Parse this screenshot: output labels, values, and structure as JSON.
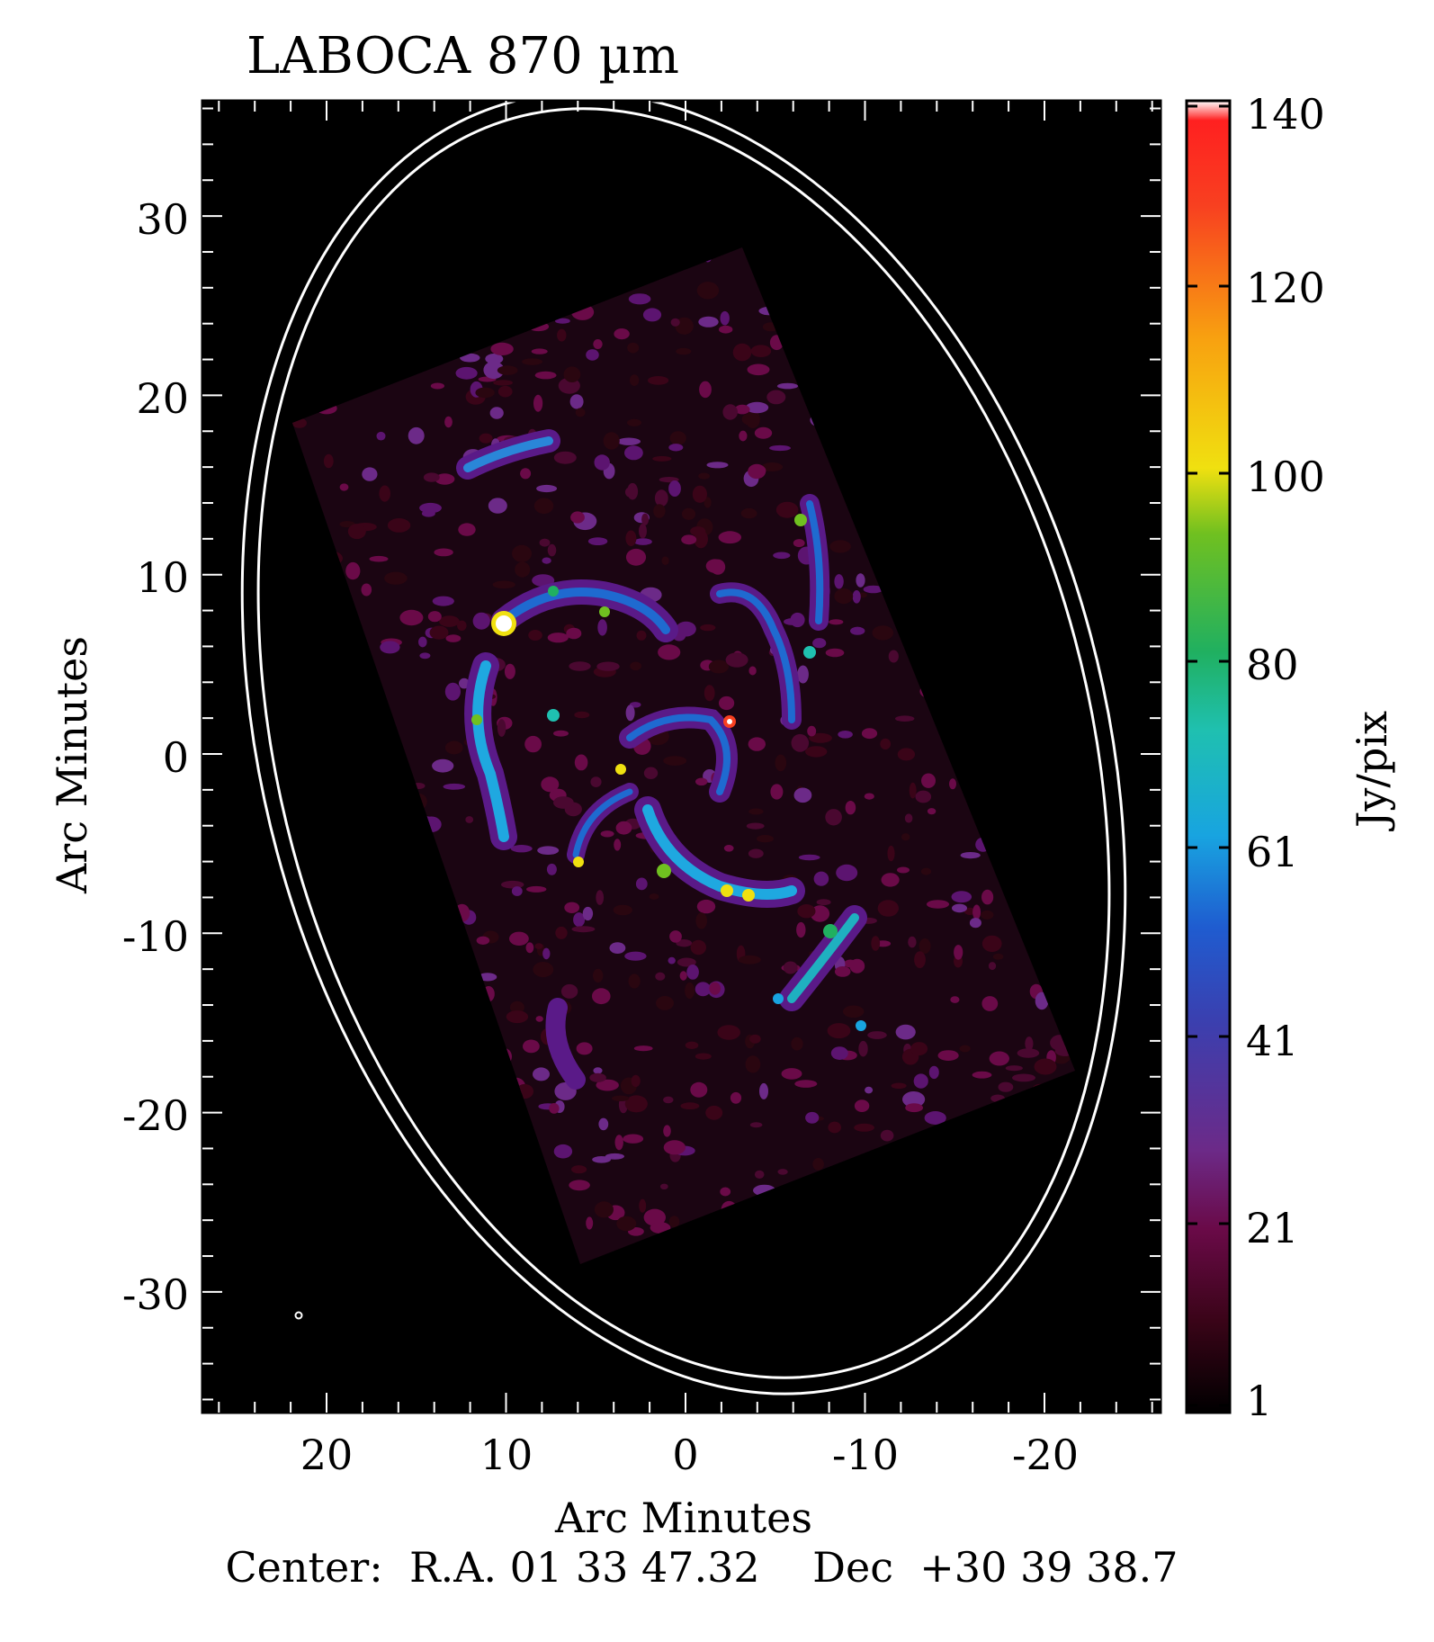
{
  "title": "LABOCA 870 µm",
  "x_axis": {
    "label": "Arc Minutes",
    "ticks": [
      "20",
      "10",
      "0",
      "-10",
      "-20"
    ]
  },
  "y_axis": {
    "label": "Arc Minutes",
    "ticks": [
      "30",
      "20",
      "10",
      "0",
      "-10",
      "-20",
      "-30"
    ]
  },
  "colorbar": {
    "label": "Jy/pix",
    "ticks": [
      "140",
      "120",
      "100",
      "80",
      "61",
      "41",
      "21",
      "1"
    ],
    "colormap": [
      "#000000",
      "#3a0418",
      "#6a0a48",
      "#6c2a88",
      "#3a40b0",
      "#1f5cd0",
      "#18a4e0",
      "#1fc0b0",
      "#20b060",
      "#70c020",
      "#f0e010",
      "#f8a010",
      "#f84020",
      "#ff2020",
      "#ffffff"
    ]
  },
  "center_text": "Center:  R.A. 01 33 47.32    Dec  +30 39 38.7",
  "colors": {
    "background": "#000000",
    "ellipse": "#ffffff",
    "frame": "#000000"
  }
}
